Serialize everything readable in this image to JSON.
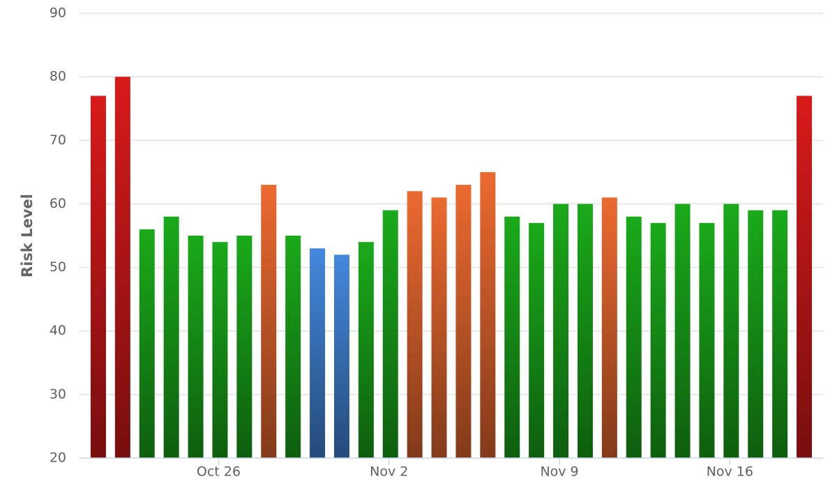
{
  "chart_data": {
    "type": "bar",
    "y_axis_label": "Risk Level",
    "categories": [
      null,
      null,
      null,
      null,
      null,
      "Oct 26",
      null,
      null,
      null,
      null,
      null,
      null,
      "Nov 2",
      null,
      null,
      null,
      null,
      null,
      null,
      "Nov 9",
      null,
      null,
      null,
      null,
      null,
      null,
      "Nov 16",
      null,
      null,
      null
    ],
    "values": [
      77,
      80,
      56,
      58,
      55,
      54,
      55,
      63,
      55,
      53,
      52,
      54,
      59,
      62,
      61,
      63,
      65,
      58,
      57,
      60,
      60,
      61,
      58,
      57,
      60,
      57,
      60,
      59,
      59,
      77
    ],
    "colors": [
      "#d81a1a",
      "#d81a1a",
      "#1aaa1a",
      "#1aaa1a",
      "#1aaa1a",
      "#1aaa1a",
      "#1aaa1a",
      "#ec6a30",
      "#1aaa1a",
      "#4488dd",
      "#4488dd",
      "#1aaa1a",
      "#1aaa1a",
      "#ec6a30",
      "#ec6a30",
      "#ec6a30",
      "#ec6a30",
      "#1aaa1a",
      "#1aaa1a",
      "#1aaa1a",
      "#1aaa1a",
      "#ec6a30",
      "#1aaa1a",
      "#1aaa1a",
      "#1aaa1a",
      "#1aaa1a",
      "#1aaa1a",
      "#1aaa1a",
      "#1aaa1a",
      "#d81a1a"
    ],
    "ylim": [
      20,
      90
    ],
    "yticks": [
      20,
      30,
      40,
      50,
      60,
      70,
      80,
      90
    ],
    "grid": true
  }
}
